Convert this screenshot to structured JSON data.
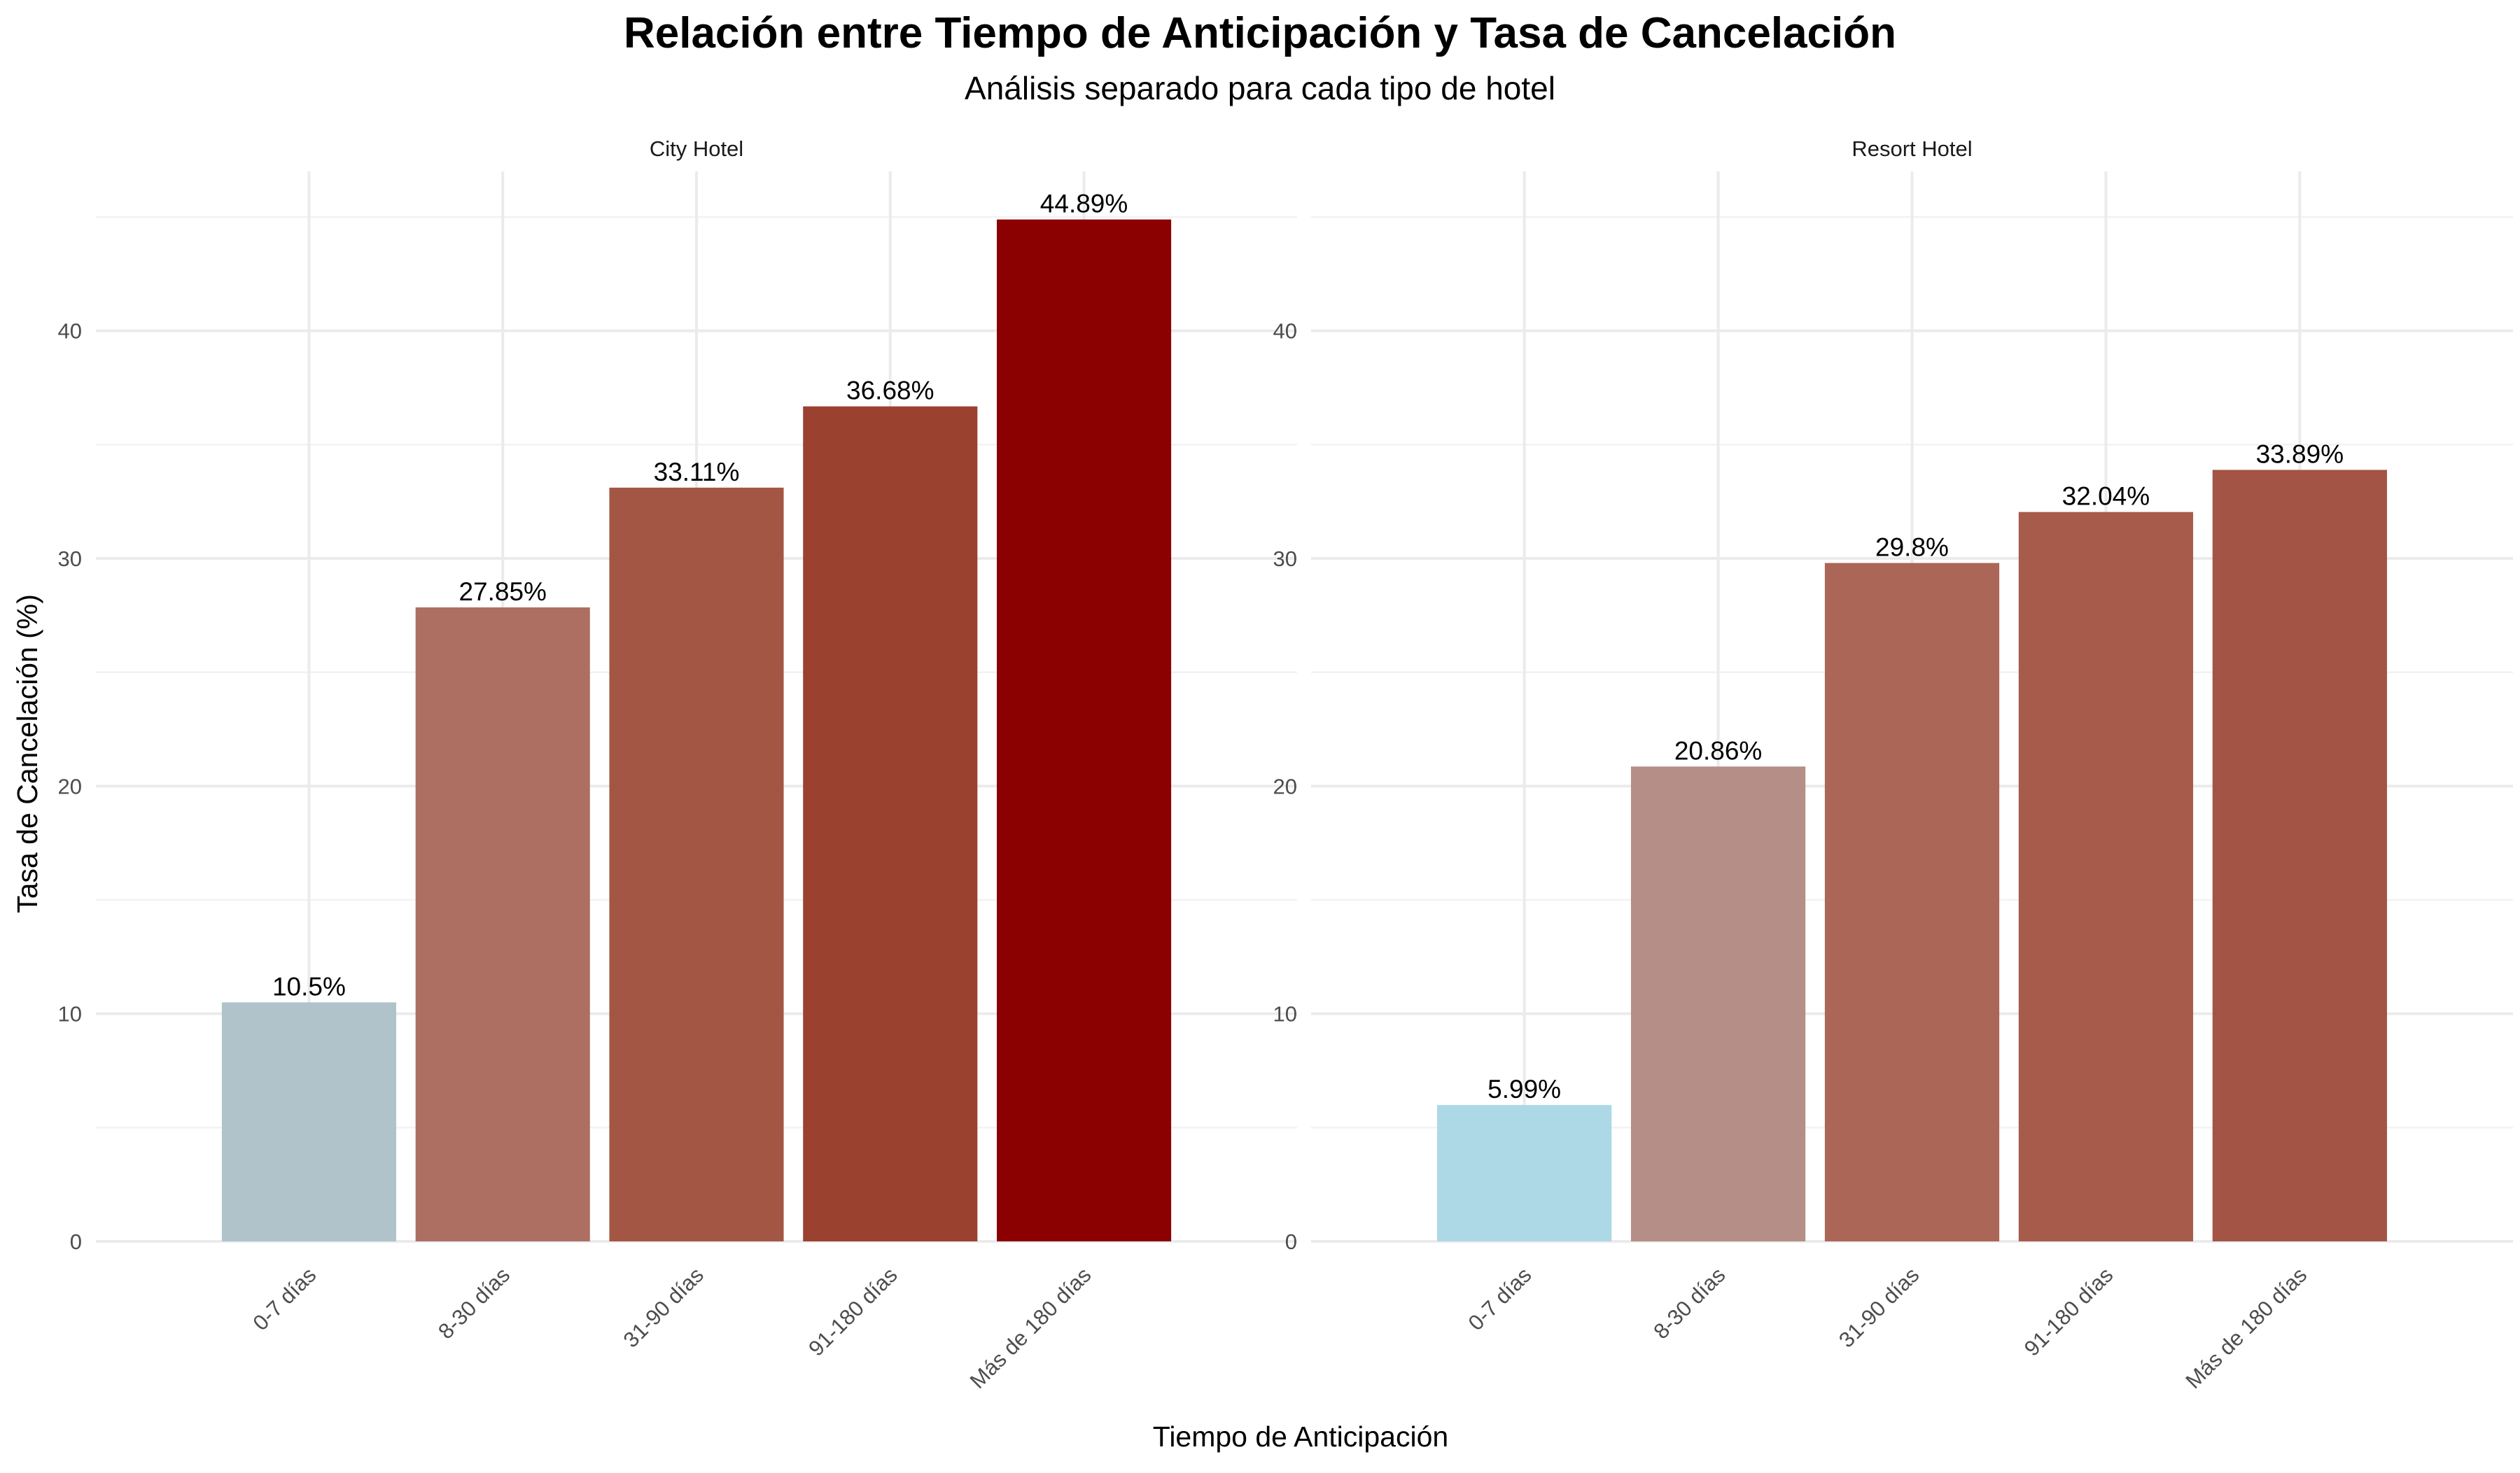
{
  "chart_data": {
    "type": "bar",
    "title": "Relación entre Tiempo de Anticipación y Tasa de Cancelación",
    "subtitle": "Análisis separado para cada tipo de hotel",
    "xlabel": "Tiempo de Anticipación",
    "ylabel": "Tasa de Cancelación (%)",
    "ylim": [
      0,
      47
    ],
    "yticks": [
      0,
      10,
      20,
      30,
      40
    ],
    "categories": [
      "0-7 días",
      "8-30 días",
      "31-90 días",
      "91-180 días",
      "Más de 180 días"
    ],
    "grid": true,
    "legend": "none",
    "panels": [
      {
        "name": "City Hotel",
        "values": [
          10.5,
          27.85,
          33.11,
          36.68,
          44.89
        ],
        "labels": [
          "10.5%",
          "27.85%",
          "33.11%",
          "36.68%",
          "44.89%"
        ],
        "colors": [
          "#b0c3ca",
          "#ac6f61",
          "#a35644",
          "#9b412f",
          "#8b0000"
        ]
      },
      {
        "name": "Resort Hotel",
        "values": [
          5.99,
          20.86,
          29.8,
          32.04,
          33.89
        ],
        "labels": [
          "5.99%",
          "20.86%",
          "29.8%",
          "32.04%",
          "33.89%"
        ],
        "colors": [
          "#add8e6",
          "#b48e87",
          "#ab6657",
          "#a65b4b",
          "#a35444"
        ]
      }
    ]
  }
}
